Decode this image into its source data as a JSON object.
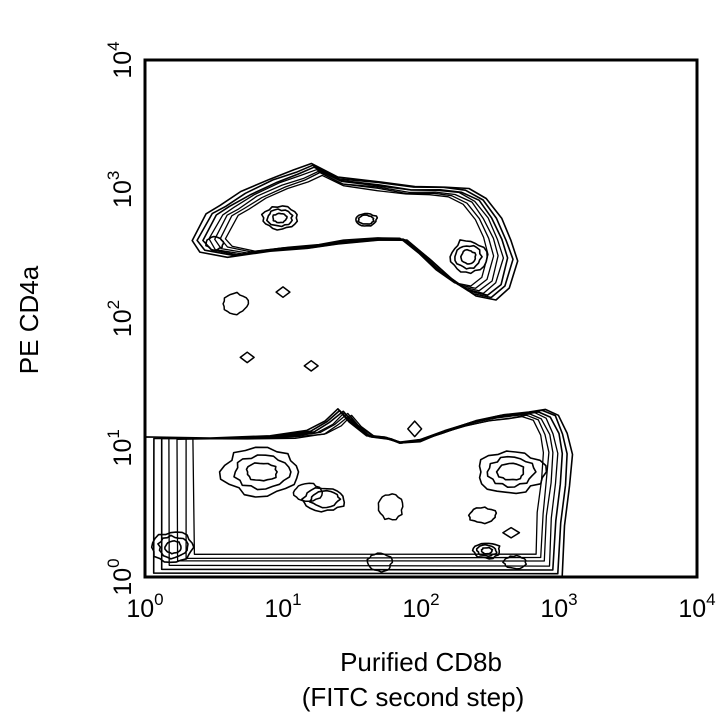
{
  "chart_data": {
    "type": "contour",
    "title": "",
    "xlabel_line1": "Purified CD8b",
    "xlabel_line2": "(FITC second step)",
    "ylabel": "PE CD4a",
    "x_scale": "log",
    "y_scale": "log",
    "xlim": [
      1,
      10000
    ],
    "ylim": [
      1,
      10000
    ],
    "grid": false,
    "x_ticks": [
      {
        "value": 1,
        "base": "10",
        "exp": "0"
      },
      {
        "value": 10,
        "base": "10",
        "exp": "1"
      },
      {
        "value": 100,
        "base": "10",
        "exp": "2"
      },
      {
        "value": 1000,
        "base": "10",
        "exp": "3"
      },
      {
        "value": 10000,
        "base": "10",
        "exp": "4"
      }
    ],
    "y_ticks": [
      {
        "value": 1,
        "base": "10",
        "exp": "0"
      },
      {
        "value": 10,
        "base": "10",
        "exp": "1"
      },
      {
        "value": 100,
        "base": "10",
        "exp": "2"
      },
      {
        "value": 1000,
        "base": "10",
        "exp": "3"
      },
      {
        "value": 10000,
        "base": "10",
        "exp": "4"
      }
    ],
    "populations": [
      {
        "id": "upper",
        "rings": 7,
        "spacing": 0.032,
        "outline": [
          [
            2.2,
            400
          ],
          [
            2.8,
            650
          ],
          [
            3.5,
            750
          ],
          [
            5.0,
            950
          ],
          [
            8.0,
            1200
          ],
          [
            12,
            1400
          ],
          [
            16,
            1600
          ],
          [
            25,
            1250
          ],
          [
            50,
            1150
          ],
          [
            90,
            1050
          ],
          [
            150,
            1050
          ],
          [
            220,
            1000
          ],
          [
            300,
            850
          ],
          [
            380,
            600
          ],
          [
            450,
            400
          ],
          [
            500,
            280
          ],
          [
            440,
            170
          ],
          [
            350,
            140
          ],
          [
            250,
            150
          ],
          [
            170,
            200
          ],
          [
            120,
            280
          ],
          [
            80,
            400
          ],
          [
            50,
            400
          ],
          [
            25,
            380
          ],
          [
            15,
            350
          ],
          [
            8,
            330
          ],
          [
            4,
            300
          ],
          [
            2.5,
            330
          ]
        ],
        "cores": [
          {
            "center": [
              9.5,
              600
            ],
            "rx": 0.13,
            "ry": 0.09,
            "rings": 3
          },
          {
            "center": [
              220,
              300
            ],
            "rx": 0.13,
            "ry": 0.13,
            "rings": 3
          },
          {
            "center": [
              40,
              580
            ],
            "rx": 0.08,
            "ry": 0.05,
            "rings": 2
          },
          {
            "center": [
              3.2,
              380
            ],
            "rx": 0.06,
            "ry": 0.05,
            "rings": 1
          }
        ]
      },
      {
        "id": "lower",
        "rings": 7,
        "spacing": 0.03,
        "outline": [
          [
            1.0,
            12
          ],
          [
            3.0,
            12
          ],
          [
            8.0,
            12.5
          ],
          [
            15,
            13.5
          ],
          [
            20,
            16
          ],
          [
            25,
            20
          ],
          [
            30,
            16
          ],
          [
            40,
            12.5
          ],
          [
            55,
            12
          ],
          [
            70,
            11
          ],
          [
            100,
            11.5
          ],
          [
            150,
            13.5
          ],
          [
            250,
            16
          ],
          [
            400,
            18
          ],
          [
            600,
            19
          ],
          [
            800,
            20
          ],
          [
            1000,
            18
          ],
          [
            1150,
            13
          ],
          [
            1250,
            9
          ],
          [
            1200,
            5
          ],
          [
            1100,
            2.5
          ],
          [
            1050,
            1.0
          ],
          [
            1.0,
            1.0
          ]
        ],
        "cores": [
          {
            "center": [
              7,
              6.5
            ],
            "rx": 0.28,
            "ry": 0.18,
            "rings": 3
          },
          {
            "center": [
              20,
              4
            ],
            "rx": 0.15,
            "ry": 0.09,
            "rings": 2
          },
          {
            "center": [
              450,
              6.5
            ],
            "rx": 0.24,
            "ry": 0.16,
            "rings": 3
          },
          {
            "center": [
              280,
              3
            ],
            "rx": 0.1,
            "ry": 0.06,
            "rings": 1
          },
          {
            "center": [
              300,
              1.6
            ],
            "rx": 0.1,
            "ry": 0.06,
            "rings": 3
          },
          {
            "center": [
              1.6,
              1.7
            ],
            "rx": 0.15,
            "ry": 0.12,
            "rings": 3
          }
        ]
      }
    ],
    "islands": [
      {
        "center": [
          4.5,
          130
        ],
        "rx": 0.09,
        "ry": 0.08,
        "shape": "blob"
      },
      {
        "center": [
          10,
          160
        ],
        "rx": 0.05,
        "ry": 0.04,
        "shape": "diamond"
      },
      {
        "center": [
          5.5,
          50
        ],
        "rx": 0.05,
        "ry": 0.04,
        "shape": "diamond"
      },
      {
        "center": [
          16,
          43
        ],
        "rx": 0.05,
        "ry": 0.04,
        "shape": "diamond"
      },
      {
        "center": [
          90,
          14
        ],
        "rx": 0.05,
        "ry": 0.06,
        "shape": "diamond"
      },
      {
        "center": [
          15,
          4.5
        ],
        "rx": 0.1,
        "ry": 0.07,
        "shape": "blob"
      },
      {
        "center": [
          60,
          3.5
        ],
        "rx": 0.09,
        "ry": 0.1,
        "shape": "blob"
      },
      {
        "center": [
          50,
          1.3
        ],
        "rx": 0.09,
        "ry": 0.07,
        "shape": "blob"
      },
      {
        "center": [
          450,
          2.2
        ],
        "rx": 0.06,
        "ry": 0.04,
        "shape": "diamond"
      },
      {
        "center": [
          480,
          1.3
        ],
        "rx": 0.08,
        "ry": 0.05,
        "shape": "blob"
      }
    ]
  }
}
